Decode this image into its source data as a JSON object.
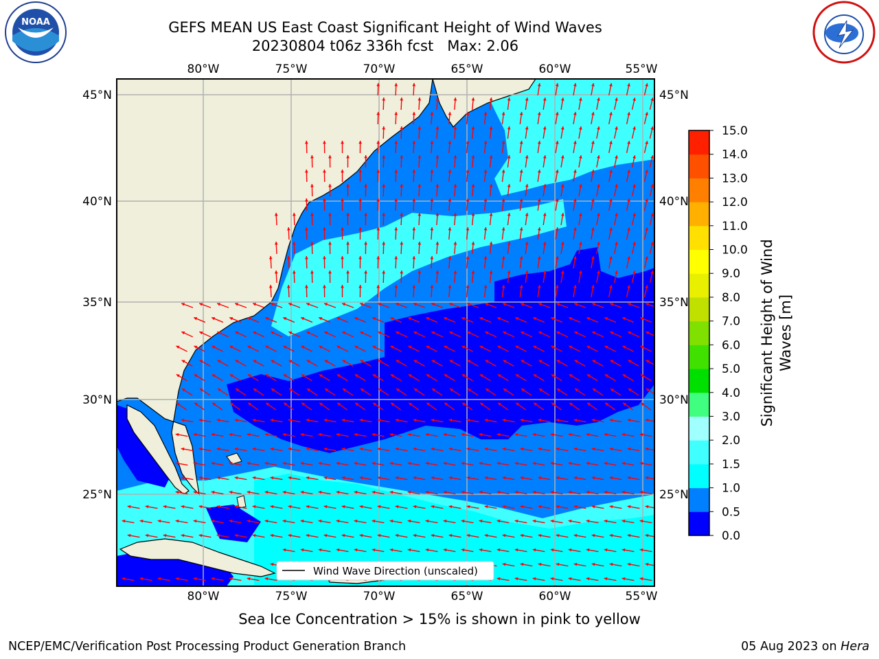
{
  "title": {
    "line1": "GEFS MEAN US East Coast Significant Height of Wind Waves",
    "line2": "20230804 t06z 336h fcst   Max: 2.06"
  },
  "logos": {
    "left": "NOAA",
    "left_ring_text": "NATIONAL OCEANIC AND ATMOSPHERIC ADMINISTRATION · U.S. DEPARTMENT OF COMMERCE",
    "right_ring_text": "NATIONAL WEATHER SERVICE"
  },
  "map": {
    "lon_ticks": [
      "80°W",
      "75°W",
      "70°W",
      "65°W",
      "60°W",
      "55°W"
    ],
    "lat_ticks": [
      "45°N",
      "40°N",
      "35°N",
      "30°N",
      "25°N"
    ],
    "legend_label": "Wind Wave Direction (unscaled)",
    "colors": {
      "land": "#efefdc",
      "band_0": "#0000ff",
      "band_05": "#0080ff",
      "band_10": "#00ffff",
      "band_15": "#40ffff",
      "arrow": "#ff0000",
      "grid": "#b0b0b0"
    }
  },
  "colorbar": {
    "label_line1": "Significant Height of Wind",
    "label_line2": "Waves [m]",
    "ticks": [
      "0.0",
      "0.5",
      "1.0",
      "1.5",
      "2.0",
      "3.0",
      "4.0",
      "5.0",
      "6.0",
      "7.0",
      "8.0",
      "9.0",
      "10.0",
      "11.0",
      "12.0",
      "13.0",
      "14.0",
      "15.0"
    ],
    "colors": [
      "#0000ff",
      "#0080ff",
      "#00ffff",
      "#40ffff",
      "#a0ffff",
      "#40ff80",
      "#00e000",
      "#40e000",
      "#80e000",
      "#c0e000",
      "#e8f000",
      "#ffff00",
      "#ffe000",
      "#ffb000",
      "#ff8000",
      "#ff5000",
      "#ff2000"
    ]
  },
  "sea_ice_note": "Sea Ice Concentration > 15% is shown in pink to yellow",
  "footer": {
    "left": "NCEP/EMC/Verification Post Processing Product Generation Branch",
    "date": "05 Aug 2023 on ",
    "machine": "Hera"
  }
}
